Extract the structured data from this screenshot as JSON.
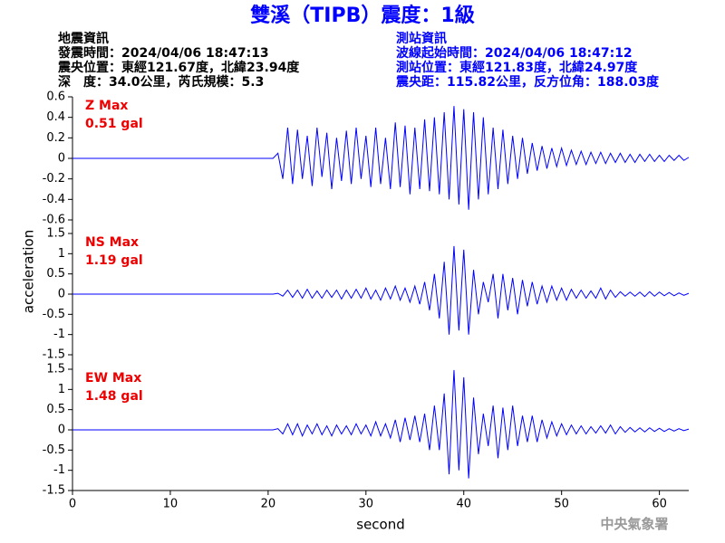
{
  "header": {
    "title": "雙溪（TIPB）震度：1級",
    "left": [
      "地震資訊",
      "發震時間：2024/04/06 18:47:13",
      "震央位置：東經121.67度，北緯23.94度",
      "深　度：34.0公里，芮氏規模：5.3"
    ],
    "right": [
      "測站資訊",
      "波線起始時間：2024/04/06 18:47:12",
      "測站位置：東經121.83度，北緯24.97度",
      "震央距：115.82公里，反方位角：188.03度"
    ],
    "ylabel": "acceleration",
    "watermark": "中央氣象署"
  },
  "chart_data": [
    {
      "type": "line",
      "annotations": [
        "Z Max",
        "0.51 gal"
      ],
      "color": "#0000ff",
      "xlim": [
        0,
        63
      ],
      "ylim": [
        -0.6,
        0.6
      ],
      "yticks": [
        -0.6,
        -0.4,
        -0.2,
        0,
        0.2,
        0.4,
        0.6
      ],
      "series": [
        {
          "x": [
            0,
            20.5,
            21,
            21.5,
            22,
            22.5,
            23,
            23.5,
            24,
            24.5,
            25,
            25.5,
            26,
            26.5,
            27,
            27.5,
            28,
            28.5,
            29,
            29.5,
            30,
            30.5,
            31,
            31.5,
            32,
            32.5,
            33,
            33.5,
            34,
            34.5,
            35,
            35.5,
            36,
            36.5,
            37,
            37.5,
            38,
            38.5,
            39,
            39.5,
            40,
            40.5,
            41,
            41.5,
            42,
            42.5,
            43,
            43.5,
            44,
            44.5,
            45,
            45.5,
            46,
            46.5,
            47,
            47.5,
            48,
            48.5,
            49,
            49.5,
            50,
            50.5,
            51,
            51.5,
            52,
            52.5,
            53,
            53.5,
            54,
            54.5,
            55,
            55.5,
            56,
            56.5,
            57,
            57.5,
            58,
            58.5,
            59,
            59.5,
            60,
            60.5,
            61,
            61.5,
            62,
            62.5,
            63
          ],
          "values": [
            0,
            0,
            0.05,
            -0.2,
            0.3,
            -0.25,
            0.28,
            -0.2,
            0.22,
            -0.27,
            0.3,
            -0.18,
            0.25,
            -0.3,
            0.2,
            -0.22,
            0.27,
            -0.25,
            0.3,
            -0.2,
            0.22,
            -0.28,
            0.3,
            -0.25,
            0.2,
            -0.3,
            0.35,
            -0.28,
            0.32,
            -0.35,
            0.3,
            -0.3,
            0.38,
            -0.32,
            0.4,
            -0.35,
            0.45,
            -0.4,
            0.51,
            -0.45,
            0.48,
            -0.5,
            0.45,
            -0.4,
            0.4,
            -0.35,
            0.3,
            -0.3,
            0.28,
            -0.25,
            0.22,
            -0.2,
            0.2,
            -0.15,
            0.15,
            -0.12,
            0.12,
            -0.1,
            0.1,
            -0.08,
            0.1,
            -0.07,
            0.08,
            -0.06,
            0.07,
            -0.06,
            0.06,
            -0.05,
            0.06,
            -0.05,
            0.05,
            -0.04,
            0.05,
            -0.04,
            0.04,
            -0.04,
            0.04,
            -0.03,
            0.04,
            -0.03,
            0.03,
            -0.03,
            0.03,
            -0.02,
            0.03,
            -0.02,
            0.01
          ]
        }
      ]
    },
    {
      "type": "line",
      "annotations": [
        "NS Max",
        "1.19 gal"
      ],
      "color": "#0000ff",
      "xlim": [
        0,
        63
      ],
      "ylim": [
        -1.5,
        1.5
      ],
      "yticks": [
        -1.5,
        -1,
        -0.5,
        0,
        0.5,
        1,
        1.5
      ],
      "series": [
        {
          "x": [
            0,
            20.5,
            21,
            21.5,
            22,
            22.5,
            23,
            23.5,
            24,
            24.5,
            25,
            25.5,
            26,
            26.5,
            27,
            27.5,
            28,
            28.5,
            29,
            29.5,
            30,
            30.5,
            31,
            31.5,
            32,
            32.5,
            33,
            33.5,
            34,
            34.5,
            35,
            35.5,
            36,
            36.5,
            37,
            37.5,
            38,
            38.5,
            39,
            39.5,
            40,
            40.5,
            41,
            41.5,
            42,
            42.5,
            43,
            43.5,
            44,
            44.5,
            45,
            45.5,
            46,
            46.5,
            47,
            47.5,
            48,
            48.5,
            49,
            49.5,
            50,
            50.5,
            51,
            51.5,
            52,
            52.5,
            53,
            53.5,
            54,
            54.5,
            55,
            55.5,
            56,
            56.5,
            57,
            57.5,
            58,
            58.5,
            59,
            59.5,
            60,
            60.5,
            61,
            61.5,
            62,
            62.5,
            63
          ],
          "values": [
            0,
            0,
            0.02,
            -0.05,
            0.1,
            -0.08,
            0.1,
            -0.1,
            0.12,
            -0.1,
            0.08,
            -0.1,
            0.1,
            -0.08,
            0.1,
            -0.12,
            0.1,
            -0.1,
            0.12,
            -0.1,
            0.15,
            -0.12,
            0.1,
            -0.15,
            0.15,
            -0.12,
            0.2,
            -0.15,
            0.15,
            -0.2,
            0.2,
            -0.25,
            0.3,
            -0.4,
            0.5,
            -0.6,
            0.8,
            -1.0,
            1.19,
            -0.9,
            1.1,
            -1.0,
            0.6,
            -0.5,
            0.3,
            -0.2,
            0.5,
            -0.6,
            0.5,
            -0.4,
            0.4,
            -0.5,
            0.35,
            -0.3,
            0.3,
            -0.25,
            0.2,
            -0.2,
            0.2,
            -0.15,
            0.15,
            -0.15,
            0.12,
            -0.1,
            0.1,
            -0.1,
            0.08,
            -0.1,
            0.15,
            -0.12,
            0.1,
            -0.08,
            0.06,
            -0.05,
            0.05,
            -0.05,
            0.05,
            -0.06,
            0.06,
            -0.05,
            0.05,
            -0.04,
            0.04,
            -0.04,
            0.03,
            -0.03,
            0.02
          ]
        }
      ]
    },
    {
      "type": "line",
      "annotations": [
        "EW Max",
        "1.48 gal"
      ],
      "color": "#0000ff",
      "xlim": [
        0,
        63
      ],
      "ylim": [
        -1.5,
        1.5
      ],
      "yticks": [
        -1.5,
        -1,
        -0.5,
        0,
        0.5,
        1,
        1.5
      ],
      "xticks": [
        0,
        10,
        20,
        30,
        40,
        50,
        60
      ],
      "xlabel": "second",
      "series": [
        {
          "x": [
            0,
            20.5,
            21,
            21.5,
            22,
            22.5,
            23,
            23.5,
            24,
            24.5,
            25,
            25.5,
            26,
            26.5,
            27,
            27.5,
            28,
            28.5,
            29,
            29.5,
            30,
            30.5,
            31,
            31.5,
            32,
            32.5,
            33,
            33.5,
            34,
            34.5,
            35,
            35.5,
            36,
            36.5,
            37,
            37.5,
            38,
            38.5,
            39,
            39.5,
            40,
            40.5,
            41,
            41.5,
            42,
            42.5,
            43,
            43.5,
            44,
            44.5,
            45,
            45.5,
            46,
            46.5,
            47,
            47.5,
            48,
            48.5,
            49,
            49.5,
            50,
            50.5,
            51,
            51.5,
            52,
            52.5,
            53,
            53.5,
            54,
            54.5,
            55,
            55.5,
            56,
            56.5,
            57,
            57.5,
            58,
            58.5,
            59,
            59.5,
            60,
            60.5,
            61,
            61.5,
            62,
            62.5,
            63
          ],
          "values": [
            0,
            0,
            0.03,
            -0.1,
            0.15,
            -0.12,
            0.15,
            -0.15,
            0.12,
            -0.1,
            0.15,
            -0.12,
            0.1,
            -0.15,
            0.12,
            -0.1,
            0.1,
            -0.12,
            0.15,
            -0.1,
            0.12,
            -0.15,
            0.2,
            -0.15,
            0.15,
            -0.2,
            0.25,
            -0.3,
            0.3,
            -0.25,
            0.35,
            -0.3,
            0.4,
            -0.5,
            0.6,
            -0.5,
            0.9,
            -1.1,
            1.48,
            -1.0,
            1.3,
            -1.2,
            0.8,
            -0.6,
            0.4,
            -0.4,
            0.6,
            -0.7,
            0.55,
            -0.5,
            0.6,
            -0.4,
            0.35,
            -0.3,
            0.35,
            -0.3,
            0.25,
            -0.2,
            0.2,
            -0.15,
            0.15,
            -0.12,
            0.12,
            -0.1,
            0.1,
            -0.1,
            0.08,
            -0.08,
            0.1,
            -0.08,
            0.12,
            -0.1,
            0.08,
            -0.06,
            0.06,
            -0.05,
            0.05,
            -0.05,
            0.05,
            -0.04,
            0.04,
            -0.04,
            0.03,
            -0.03,
            0.03,
            -0.02,
            0.02
          ]
        }
      ]
    }
  ]
}
